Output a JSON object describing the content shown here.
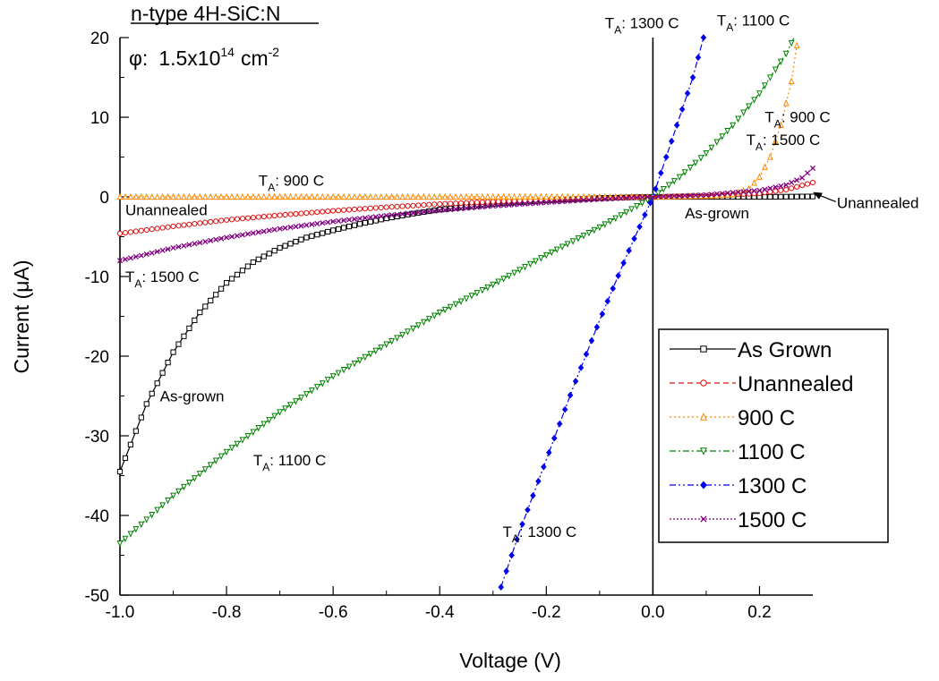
{
  "chart_data": {
    "type": "line",
    "title": "n-type 4H-SiC:N",
    "fluence": {
      "symbol": "φ",
      "separator": ":",
      "value": "1.5x10",
      "exponent": "14",
      "unit": "cm",
      "unit_exponent": "-2"
    },
    "xlabel": "Voltage (V)",
    "ylabel": "Current (μA)",
    "xlim": [
      -1.0,
      0.3
    ],
    "ylim": [
      -50,
      20
    ],
    "xticks": [
      -1.0,
      -0.8,
      -0.6,
      -0.4,
      -0.2,
      0.0,
      0.2
    ],
    "xtick_labels": [
      "-1.0",
      "-0.8",
      "-0.6",
      "-0.4",
      "-0.2",
      "0.0",
      "0.2"
    ],
    "yticks": [
      -50,
      -40,
      -30,
      -20,
      -10,
      0,
      10,
      20
    ],
    "ytick_labels": [
      "-50",
      "-40",
      "-30",
      "-20",
      "-10",
      "0",
      "10",
      "20"
    ],
    "grid": false,
    "legend_position": "bottom-right",
    "series": [
      {
        "name": "As Grown",
        "color": "#000000",
        "marker": "square",
        "dash": "solid",
        "x": [
          -1.0,
          -0.95,
          -0.9,
          -0.85,
          -0.8,
          -0.75,
          -0.7,
          -0.65,
          -0.6,
          -0.55,
          -0.5,
          -0.45,
          -0.4,
          -0.3,
          -0.2,
          -0.1,
          0.0,
          0.1,
          0.2,
          0.3
        ],
        "y": [
          -34.5,
          -26.0,
          -19.5,
          -14.5,
          -10.8,
          -8.2,
          -6.4,
          -5.1,
          -4.2,
          -3.4,
          -2.7,
          -2.1,
          -1.6,
          -0.9,
          -0.45,
          -0.15,
          0.0,
          0.0,
          0.0,
          0.05
        ]
      },
      {
        "name": "Unannealed",
        "color": "#e01010",
        "marker": "circle",
        "dash": "dash",
        "x": [
          -1.0,
          -0.9,
          -0.8,
          -0.7,
          -0.6,
          -0.5,
          -0.4,
          -0.3,
          -0.2,
          -0.1,
          0.0,
          0.1,
          0.2,
          0.25,
          0.3
        ],
        "y": [
          -4.6,
          -3.7,
          -2.9,
          -2.3,
          -1.75,
          -1.3,
          -0.9,
          -0.6,
          -0.35,
          -0.15,
          0.0,
          0.1,
          0.45,
          0.9,
          1.8
        ]
      },
      {
        "name": "900 C",
        "color": "#ff8800",
        "marker": "triangle-up",
        "dash": "dot",
        "x": [
          -1.0,
          -0.8,
          -0.6,
          -0.4,
          -0.2,
          0.0,
          0.1,
          0.15,
          0.18,
          0.2,
          0.22,
          0.24,
          0.26,
          0.27
        ],
        "y": [
          0.0,
          0.0,
          0.0,
          0.0,
          0.0,
          0.0,
          0.1,
          0.3,
          1.0,
          2.5,
          5.0,
          9.0,
          14.5,
          19.0
        ]
      },
      {
        "name": "1100 C",
        "color": "#008000",
        "marker": "triangle-down",
        "dash": "dashdot",
        "x": [
          -1.0,
          -0.9,
          -0.8,
          -0.7,
          -0.6,
          -0.5,
          -0.4,
          -0.3,
          -0.2,
          -0.1,
          0.0,
          0.05,
          0.1,
          0.15,
          0.2,
          0.25,
          0.265
        ],
        "y": [
          -43.5,
          -37.5,
          -32.0,
          -27.0,
          -22.5,
          -18.5,
          -14.5,
          -11.0,
          -7.3,
          -3.8,
          0.0,
          2.5,
          5.5,
          9.0,
          13.0,
          18.0,
          20.0
        ]
      },
      {
        "name": "1300 C",
        "color": "#0000ee",
        "marker": "diamond",
        "dash": "dashdotdot",
        "x": [
          -0.285,
          -0.25,
          -0.2,
          -0.15,
          -0.1,
          -0.05,
          0.0,
          0.025,
          0.05,
          0.075,
          0.095
        ],
        "y": [
          -49.0,
          -42.0,
          -33.0,
          -24.0,
          -15.5,
          -7.5,
          0.0,
          5.0,
          10.0,
          15.0,
          20.0
        ]
      },
      {
        "name": "1500 C",
        "color": "#800080",
        "marker": "x",
        "dash": "shortdot",
        "x": [
          -1.0,
          -0.9,
          -0.8,
          -0.7,
          -0.6,
          -0.5,
          -0.4,
          -0.3,
          -0.2,
          -0.1,
          0.0,
          0.1,
          0.2,
          0.25,
          0.28,
          0.3
        ],
        "y": [
          -8.0,
          -6.4,
          -5.1,
          -4.0,
          -3.1,
          -2.35,
          -1.7,
          -1.15,
          -0.7,
          -0.3,
          0.0,
          0.25,
          0.8,
          1.5,
          2.4,
          3.6
        ]
      }
    ],
    "annotations": [
      {
        "main": "T",
        "sub": "A",
        "rest": ":  1300 C",
        "x": -0.09,
        "y": 21.2
      },
      {
        "main": "T",
        "sub": "A",
        "rest": ":  1100 C",
        "x": 0.12,
        "y": 21.5
      },
      {
        "main": "T",
        "sub": "A",
        "rest": ":  900 C",
        "x": 0.21,
        "y": 9.4
      },
      {
        "main": "T",
        "sub": "A",
        "rest": ":  1500 C",
        "x": 0.175,
        "y": 6.5
      },
      {
        "main": "T",
        "sub": "A",
        "rest": ":  900 C",
        "x": -0.74,
        "y": 1.4
      },
      {
        "main": "",
        "sub": "",
        "rest": "Unannealed",
        "x": -0.99,
        "y": -2.3
      },
      {
        "main": "T",
        "sub": "A",
        "rest": ":  1500 C",
        "x": -0.99,
        "y": -10.7
      },
      {
        "main": "",
        "sub": "",
        "rest": "As-grown",
        "x": -0.925,
        "y": -25.7
      },
      {
        "main": "T",
        "sub": "A",
        "rest": ":  1100 C",
        "x": -0.75,
        "y": -33.7
      },
      {
        "main": "T",
        "sub": "A",
        "rest": ":  1300 C",
        "x": -0.282,
        "y": -42.7
      },
      {
        "main": "",
        "sub": "",
        "rest": "As-grown",
        "x": 0.06,
        "y": -2.7
      }
    ],
    "arrow_annotation": {
      "text": "Unannealed",
      "text_x": 0.34,
      "text_y": -0.5,
      "target_x": 0.3,
      "target_y": 0.6
    }
  }
}
